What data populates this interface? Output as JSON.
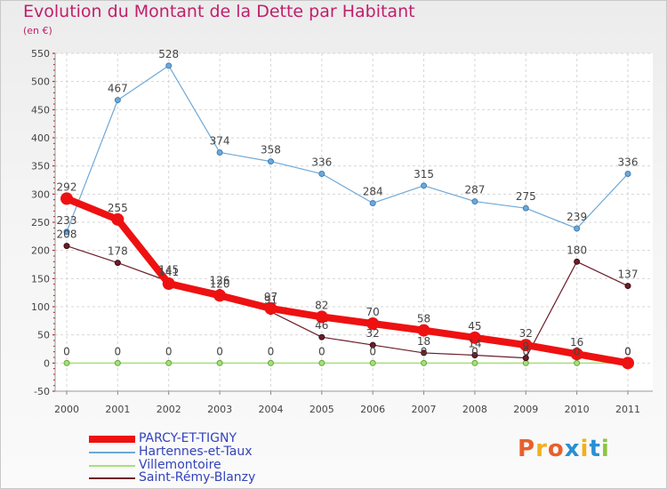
{
  "header": {
    "title": "Evolution du Montant de la Dette par Habitant",
    "subtitle": "(en €)"
  },
  "logo": {
    "text": "Proxiti",
    "colors": [
      "#e8602c",
      "#f2b01e",
      "#e8602c",
      "#2a8fd4",
      "#f2b01e",
      "#2a8fd4",
      "#8cc63f"
    ]
  },
  "chart_data": {
    "type": "line",
    "title": "Evolution du Montant de la Dette par Habitant",
    "subtitle": "(en €)",
    "x": [
      "2000",
      "2001",
      "2002",
      "2003",
      "2004",
      "2005",
      "2006",
      "2007",
      "2008",
      "2009",
      "2010",
      "2011"
    ],
    "y_ticks": [
      -50,
      0,
      50,
      100,
      150,
      200,
      250,
      300,
      350,
      400,
      450,
      500,
      550
    ],
    "ylim": [
      -50,
      550
    ],
    "grid": true,
    "legend_position": "bottom-left",
    "series": [
      {
        "name": "Hartennes-et-Taux",
        "color": "#6fa8d6",
        "values": [
          233,
          467,
          528,
          374,
          358,
          336,
          284,
          315,
          287,
          275,
          239,
          336
        ]
      },
      {
        "name": "Villemontoire",
        "color": "#a6e07a",
        "values": [
          0,
          0,
          0,
          0,
          0,
          0,
          0,
          0,
          0,
          0,
          0,
          0
        ]
      },
      {
        "name": "Saint-Rémy-Blanzy",
        "color": "#6b1e2a",
        "values": [
          208,
          178,
          145,
          126,
          91,
          46,
          32,
          18,
          14,
          9,
          180,
          137
        ]
      },
      {
        "name": "PARCY-ET-TIGNY",
        "color": "#ee1111",
        "values": [
          292,
          255,
          141,
          120,
          97,
          82,
          70,
          58,
          45,
          32,
          16,
          0
        ]
      }
    ],
    "legend_order": [
      "PARCY-ET-TIGNY",
      "Hartennes-et-Taux",
      "Villemontoire",
      "Saint-Rémy-Blanzy"
    ]
  }
}
